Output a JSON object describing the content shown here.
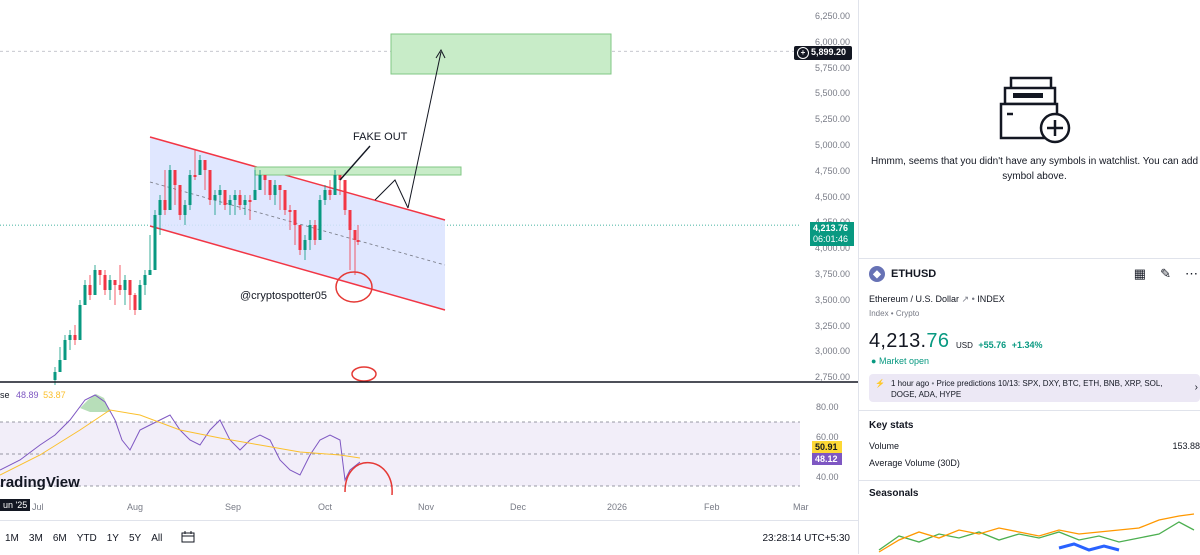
{
  "chart": {
    "price_ticks": [
      "6,250.00",
      "6,000.00",
      "5,750.00",
      "5,500.00",
      "5,250.00",
      "5,000.00",
      "4,750.00",
      "4,500.00",
      "4,250.00",
      "4,000.00",
      "3,750.00",
      "3,500.00",
      "3,250.00",
      "3,000.00",
      "2,750.00"
    ],
    "target_price": "5,899.20",
    "current_price": "4,213.76",
    "countdown": "06:01:46",
    "annotation_fake_out": "FAKE OUT",
    "watermark_handle": "@cryptospotter05",
    "rsi_label": "se",
    "rsi_val1": "48.89",
    "rsi_val2": "53.87",
    "rsi_ticks": [
      "80.00",
      "60.00",
      "40.00"
    ],
    "rsi_tag_yellow": "50.91",
    "rsi_tag_purple": "48.12",
    "logo_text": "radingView",
    "date_ticks": [
      "Jul",
      "Aug",
      "Sep",
      "Oct",
      "Nov",
      "Dec",
      "2026",
      "Feb",
      "Mar"
    ],
    "date_badge": "un '25",
    "colors": {
      "up": "#089981",
      "down": "#f23645",
      "channel": "#f23645",
      "channel_fill": "#dbe3ff",
      "target_fill": "#c8ecc8"
    }
  },
  "bottom_bar": {
    "periods": [
      "1M",
      "3M",
      "6M",
      "YTD",
      "1Y",
      "5Y",
      "All"
    ],
    "calendar_icon": "calendar-range-icon",
    "clock": "23:28:14 UTC+5:30"
  },
  "watchlist": {
    "empty_text": "Hmmm, seems that you didn't have any symbols in watchlist. You can add symbol above."
  },
  "details": {
    "symbol": "ETHUSD",
    "description": "Ethereum / U.S. Dollar",
    "exchange": "INDEX",
    "sub": "Index • Crypto",
    "price_main": "4,213.",
    "price_dec": "76",
    "currency": "USD",
    "change": "+55.76",
    "change_pct": "+1.34%",
    "market_status": "Market open",
    "news_time": "1 hour ago",
    "news_text": "Price predictions 10/13: SPX, DXY, BTC, ETH, BNB, XRP, SOL, DOGE, ADA, HYPE",
    "key_stats_title": "Key stats",
    "volume_label": "Volume",
    "volume_value": "153.88",
    "avg_volume_label": "Average Volume (30D)",
    "seasonals_title": "Seasonals"
  }
}
